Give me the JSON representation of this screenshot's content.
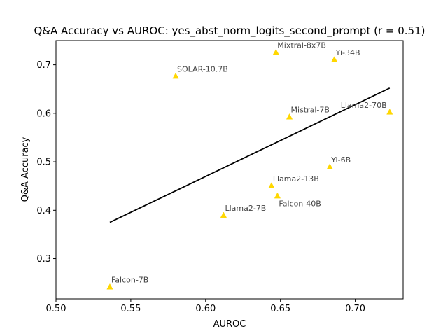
{
  "chart_data": {
    "type": "scatter",
    "title": "Q&A Accuracy vs AUROC: yes_abst_norm_logits_second_prompt (r = 0.51)",
    "xlabel": "AUROC",
    "ylabel": "Q&A Accuracy",
    "xlim": [
      0.5,
      0.732
    ],
    "ylim": [
      0.217,
      0.75
    ],
    "xticks": [
      0.5,
      0.55,
      0.6,
      0.65,
      0.7
    ],
    "xtick_labels": [
      "0.50",
      "0.55",
      "0.60",
      "0.65",
      "0.70"
    ],
    "yticks": [
      0.3,
      0.4,
      0.5,
      0.6,
      0.7
    ],
    "ytick_labels": [
      "0.3",
      "0.4",
      "0.5",
      "0.6",
      "0.7"
    ],
    "grid": false,
    "marker": "triangle",
    "marker_color": "#FFD700",
    "points": [
      {
        "label": "Falcon-7B",
        "x": 0.536,
        "y": 0.242
      },
      {
        "label": "SOLAR-10.7B",
        "x": 0.58,
        "y": 0.677
      },
      {
        "label": "Llama2-7B",
        "x": 0.612,
        "y": 0.39
      },
      {
        "label": "Llama2-13B",
        "x": 0.644,
        "y": 0.451
      },
      {
        "label": "Mixtral-8x7B",
        "x": 0.647,
        "y": 0.726
      },
      {
        "label": "Falcon-40B",
        "x": 0.648,
        "y": 0.43
      },
      {
        "label": "Mistral-7B",
        "x": 0.656,
        "y": 0.593
      },
      {
        "label": "Yi-6B",
        "x": 0.683,
        "y": 0.49
      },
      {
        "label": "Yi-34B",
        "x": 0.686,
        "y": 0.711
      },
      {
        "label": "Llama2-70B",
        "x": 0.723,
        "y": 0.603
      }
    ],
    "trendline": {
      "x": [
        0.536,
        0.723
      ],
      "y": [
        0.375,
        0.652
      ],
      "color": "#000000"
    }
  }
}
